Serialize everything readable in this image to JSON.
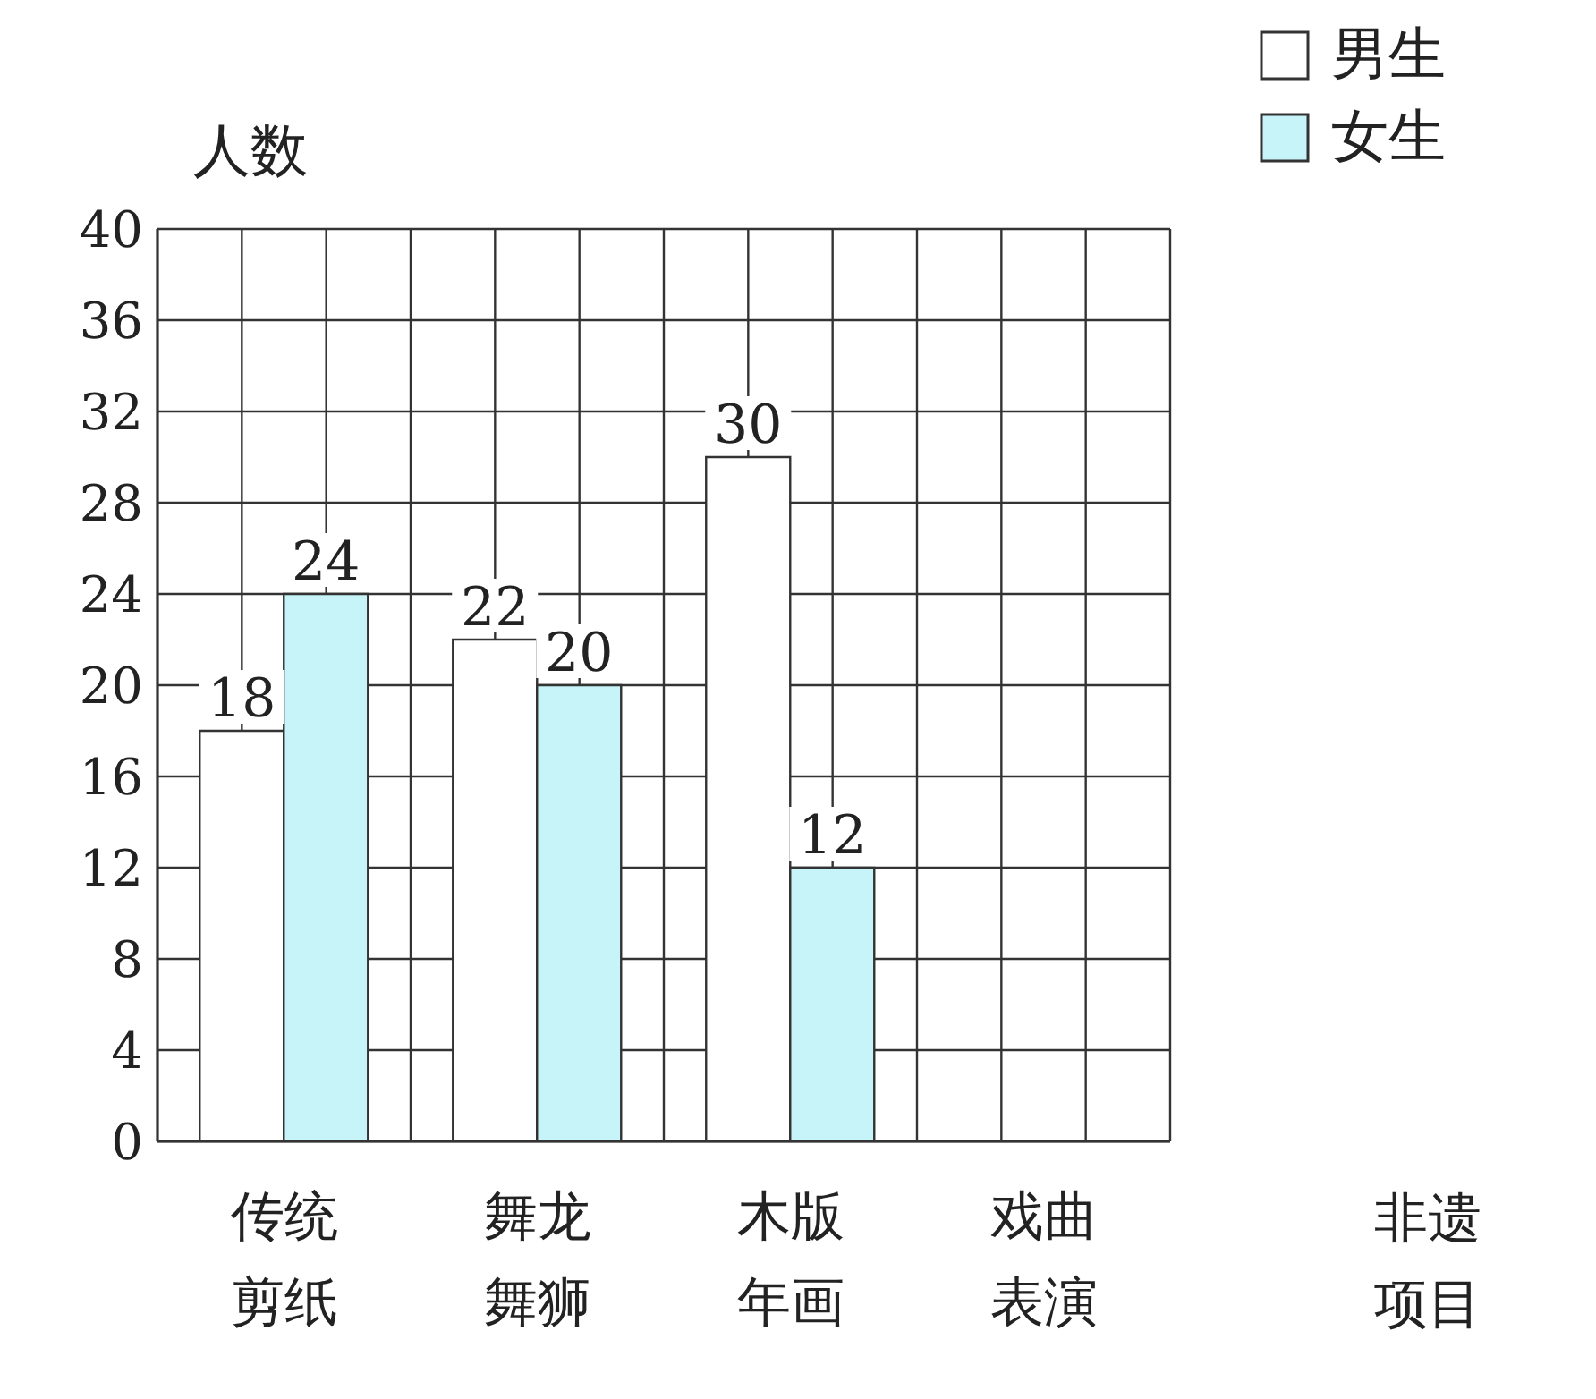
{
  "chart_data": {
    "type": "bar",
    "ylabel": "人数",
    "xlabel": "非遗项目",
    "categories": [
      "传统剪纸",
      "舞龙舞狮",
      "木版年画",
      "戏曲表演"
    ],
    "series": [
      {
        "name": "男生",
        "color": "#ffffff",
        "values": [
          18,
          22,
          30,
          null
        ]
      },
      {
        "name": "女生",
        "color": "#c6f4f8",
        "values": [
          24,
          20,
          12,
          null
        ]
      }
    ],
    "ylim": [
      0,
      40
    ],
    "yticks": [
      0,
      4,
      8,
      12,
      16,
      20,
      24,
      28,
      32,
      36,
      40
    ],
    "grid": true,
    "legend": "top right",
    "data_labels": true
  }
}
